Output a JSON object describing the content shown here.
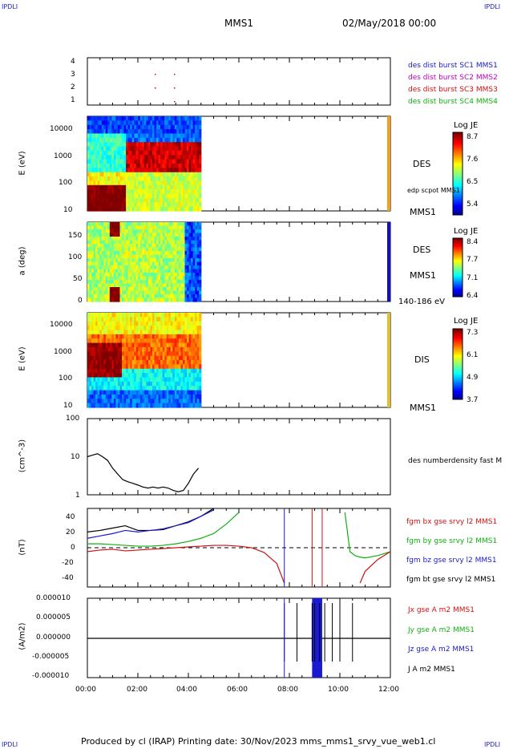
{
  "header": {
    "corner_tl": "IPDLI",
    "corner_tr": "IPDLI",
    "corner_bl": "IPDLI",
    "corner_br": "IPDLI",
    "mission": "MMS1",
    "date": "02/May/2018 00:00"
  },
  "footer": {
    "text": "Produced by cl (IRAP)   Printing date: 30/Nov/2023   mms_mms1_srvy_vue_web1.cl"
  },
  "panels": {
    "p1": {
      "yticks": [
        "4",
        "3",
        "2",
        "1"
      ],
      "legend": [
        {
          "text": "des dist burst SC1 MMS1",
          "color": "#1a1ad0"
        },
        {
          "text": "des dist burst SC2 MMS2",
          "color": "#c000c0"
        },
        {
          "text": "des dist burst SC3 MMS3",
          "color": "#d01010"
        },
        {
          "text": "des dist burst SC4 MMS4",
          "color": "#10b010"
        }
      ]
    },
    "p2": {
      "ylabel": "E (eV)",
      "yticks": [
        "10000",
        "1000",
        "100",
        "10"
      ],
      "side_top": "DES",
      "side_mid": "edp scpot MMS1",
      "side_bot": "MMS1",
      "cbar_title": "Log JE",
      "cbar_ticks": [
        "8.7",
        "7.6",
        "6.5",
        "5.4"
      ]
    },
    "p3": {
      "ylabel": "a (deg)",
      "yticks": [
        "150",
        "100",
        "50",
        "0"
      ],
      "side_top": "DES",
      "side_mid": "MMS1",
      "side_bot": "140-186 eV",
      "cbar_title": "Log JE",
      "cbar_ticks": [
        "8.4",
        "7.7",
        "7.1",
        "6.4"
      ]
    },
    "p4": {
      "ylabel": "E (eV)",
      "yticks": [
        "10000",
        "1000",
        "100",
        "10"
      ],
      "side_top": "DIS",
      "side_bot": "MMS1",
      "cbar_title": "Log JE",
      "cbar_ticks": [
        "7.3",
        "6.1",
        "4.9",
        "3.7"
      ]
    },
    "p5": {
      "ylabel": "(cm^-3)",
      "yticks": [
        "100",
        "10",
        "1"
      ],
      "legend": "des numberdensity fast M"
    },
    "p6": {
      "ylabel": "(nT)",
      "yticks": [
        "40",
        "20",
        "0",
        "-20",
        "-40"
      ],
      "legend": [
        {
          "text": "fgm bx gse srvy l2 MMS1",
          "color": "#d01010"
        },
        {
          "text": "fgm by gse srvy l2 MMS1",
          "color": "#10b010"
        },
        {
          "text": "fgm bz gse srvy l2 MMS1",
          "color": "#1a1ad0"
        },
        {
          "text": "fgm bt gse srvy l2 MMS1",
          "color": "#000000"
        }
      ]
    },
    "p7": {
      "ylabel": "(A/m2)",
      "yticks": [
        "0.000010",
        "0.000005",
        "0.000000",
        "-0.000005",
        "-0.000010"
      ],
      "legend": [
        {
          "text": "Jx gse A m2 MMS1",
          "color": "#d01010"
        },
        {
          "text": "Jy gse A m2 MMS1",
          "color": "#10b010"
        },
        {
          "text": "Jz gse A m2 MMS1",
          "color": "#1a1ad0"
        },
        {
          "text": "J A m2 MMS1",
          "color": "#000000"
        }
      ]
    }
  },
  "xticks": [
    "00:00",
    "02:00",
    "04:00",
    "06:00",
    "08:00",
    "10:00",
    "12:00"
  ],
  "chart_data": {
    "type": "line",
    "x_range_hours": [
      0,
      12
    ],
    "density": {
      "ylim": [
        1,
        100
      ],
      "log": true,
      "t": [
        0.0,
        0.2,
        0.4,
        0.6,
        0.8,
        1.0,
        1.2,
        1.4,
        1.6,
        1.8,
        2.0,
        2.2,
        2.4,
        2.6,
        2.8,
        3.0,
        3.2,
        3.4,
        3.6,
        3.8,
        4.0,
        4.2,
        4.4
      ],
      "n": [
        10,
        11,
        12,
        10,
        8,
        5,
        3.5,
        2.5,
        2.2,
        2.0,
        1.8,
        1.6,
        1.5,
        1.6,
        1.5,
        1.6,
        1.5,
        1.3,
        1.2,
        1.3,
        2.0,
        3.5,
        5.0
      ]
    },
    "bfield": {
      "ylim": [
        -50,
        50
      ],
      "t": [
        0.0,
        0.5,
        1.0,
        1.5,
        2.0,
        2.5,
        3.0,
        3.5,
        4.0,
        4.5,
        5.0,
        5.5,
        6.0,
        6.5,
        7.0,
        7.5,
        7.8
      ],
      "bx": [
        -5,
        -3,
        -2,
        -4,
        -3,
        -2,
        -1,
        0,
        1,
        2,
        3,
        3,
        2,
        0,
        -6,
        -20,
        -45
      ],
      "by": [
        5,
        5,
        4,
        3,
        2,
        2,
        3,
        5,
        8,
        12,
        18,
        30,
        45,
        null,
        null,
        null,
        null
      ],
      "bt": [
        20,
        22,
        25,
        28,
        22,
        22,
        23,
        28,
        33,
        40,
        50,
        null,
        null,
        null,
        null,
        null,
        null
      ],
      "bz": [
        12,
        15,
        18,
        22,
        20,
        22,
        24,
        28,
        32,
        40,
        48,
        null,
        null,
        null,
        null,
        null,
        null
      ],
      "t_right": [
        10.2,
        10.4,
        10.6,
        10.8,
        11.0,
        11.5,
        12.0
      ],
      "by_right": [
        45,
        -5,
        -10,
        -12,
        -13,
        -10,
        -5
      ],
      "bx_right": [
        null,
        null,
        null,
        -45,
        -30,
        -15,
        -5
      ]
    },
    "current": {
      "ylim": [
        -1e-05,
        1e-05
      ],
      "spikes_hours": [
        7.8,
        8.3,
        8.9,
        9.0,
        9.2,
        9.4,
        9.7,
        10.0,
        10.5
      ]
    }
  }
}
